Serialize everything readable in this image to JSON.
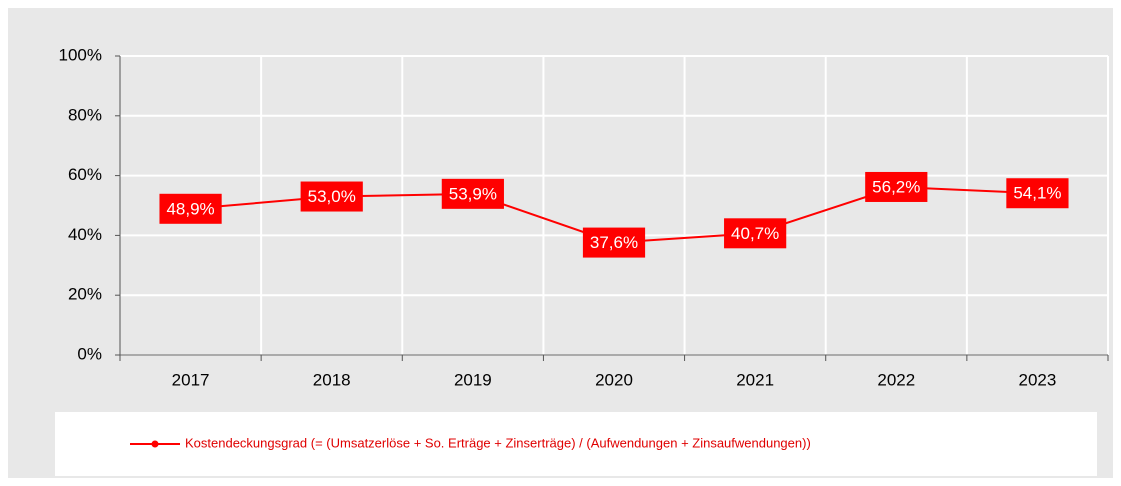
{
  "chart_data": {
    "type": "line",
    "categories": [
      "2017",
      "2018",
      "2019",
      "2020",
      "2021",
      "2022",
      "2023"
    ],
    "series": [
      {
        "name": "Kostendeckungsgrad (= (Umsatzerlöse + So. Erträge + Zinserträge) / (Aufwendungen + Zinsaufwendungen))",
        "color": "#ff0000",
        "values": [
          48.9,
          53.0,
          53.9,
          37.6,
          40.7,
          56.2,
          54.1
        ],
        "value_labels": [
          "48,9%",
          "53,0%",
          "53,9%",
          "37,6%",
          "40,7%",
          "56,2%",
          "54,1%"
        ]
      }
    ],
    "ylim": [
      0,
      100
    ],
    "yticks": [
      {
        "value": 0,
        "label": "0%"
      },
      {
        "value": 20,
        "label": "20%"
      },
      {
        "value": 40,
        "label": "40%"
      },
      {
        "value": 60,
        "label": "60%"
      },
      {
        "value": 80,
        "label": "80%"
      },
      {
        "value": 100,
        "label": "100%"
      }
    ],
    "grid": true,
    "legend": "bottom"
  }
}
